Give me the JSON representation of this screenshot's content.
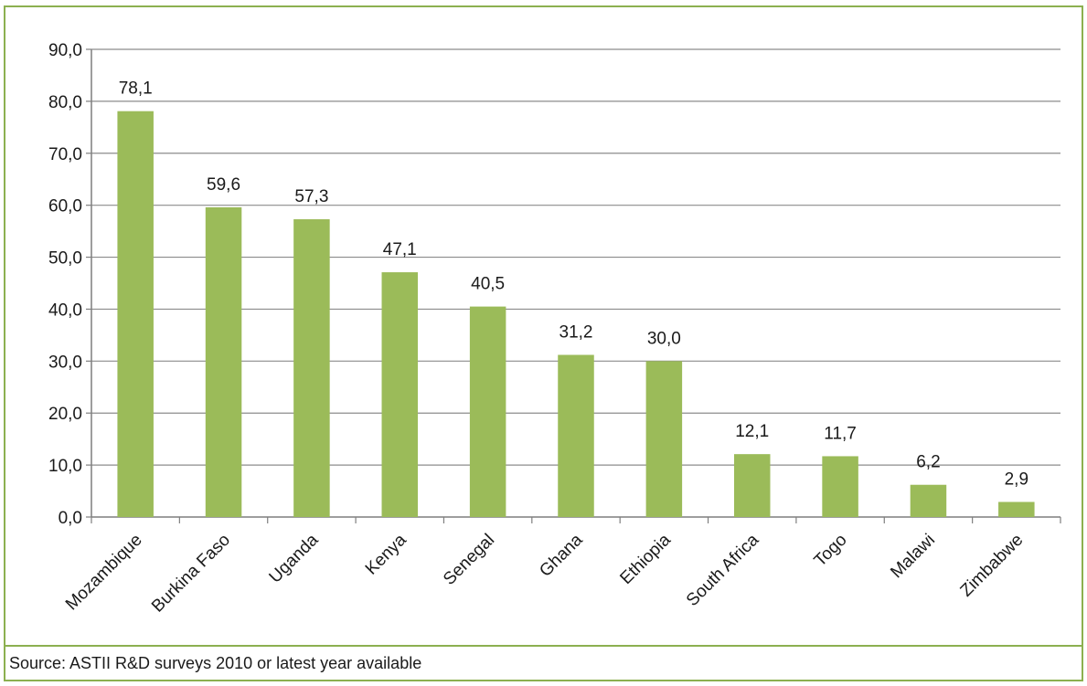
{
  "chart_data": {
    "type": "bar",
    "categories": [
      "Mozambique",
      "Burkina Faso",
      "Uganda",
      "Kenya",
      "Senegal",
      "Ghana",
      "Ethiopia",
      "South Africa",
      "Togo",
      "Malawi",
      "Zimbabwe"
    ],
    "values": [
      78.1,
      59.6,
      57.3,
      47.1,
      40.5,
      31.2,
      30.0,
      12.1,
      11.7,
      6.2,
      2.9
    ],
    "value_labels": [
      "78,1",
      "59,6",
      "57,3",
      "47,1",
      "40,5",
      "31,2",
      "30,0",
      "12,1",
      "11,7",
      "6,2",
      "2,9"
    ],
    "y_ticks": [
      0,
      10,
      20,
      30,
      40,
      50,
      60,
      70,
      80,
      90
    ],
    "y_tick_labels": [
      "0,0",
      "10,0",
      "20,0",
      "30,0",
      "40,0",
      "50,0",
      "60,0",
      "70,0",
      "80,0",
      "90,0"
    ],
    "ylim": [
      0,
      90
    ],
    "title": "",
    "xlabel": "",
    "ylabel": "",
    "grid": true,
    "legend": "none",
    "bar_color": "#9bbb59",
    "grid_color": "#8c8c8c"
  },
  "source": {
    "text": "Source: ASTII R&D surveys 2010 or latest year available"
  },
  "colors": {
    "frame": "#8cb050"
  }
}
